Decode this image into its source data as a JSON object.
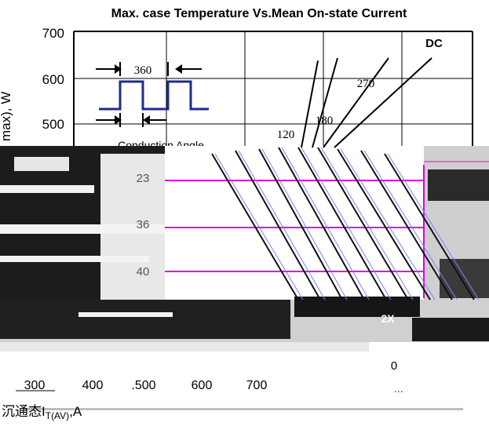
{
  "chart_data": {
    "type": "line",
    "title": "Max. case Temperature Vs.Mean On-state Current",
    "ylabel": "max), W",
    "xlabel_prefix": "沉通态I",
    "xlabel_sub": "T(AV)",
    "xlabel_suffix": ",A",
    "y_ticks": [
      "700",
      "600",
      "500"
    ],
    "x_ticks": [
      "300",
      "400",
      ".500",
      "600",
      "700"
    ],
    "right_axis_labels": [
      "2X",
      "0"
    ],
    "left_inner_labels": [
      "23",
      "36",
      "40"
    ],
    "bottom_right_fragment": "...",
    "inset": {
      "period_label": "360",
      "caption": "Conduction Angle"
    },
    "series": [
      {
        "name": "120",
        "x": [
          300,
          665
        ],
        "y": [
          465,
          300
        ]
      },
      {
        "name": "180",
        "x": [
          300,
          760
        ],
        "y": [
          470,
          300
        ]
      },
      {
        "name": "270",
        "x": [
          300,
          840
        ],
        "y": [
          470,
          300
        ]
      },
      {
        "name": "DC",
        "x": [
          300,
          930
        ],
        "y": [
          470,
          300
        ]
      }
    ],
    "magenta_rows": [
      3,
      5,
      7
    ]
  }
}
